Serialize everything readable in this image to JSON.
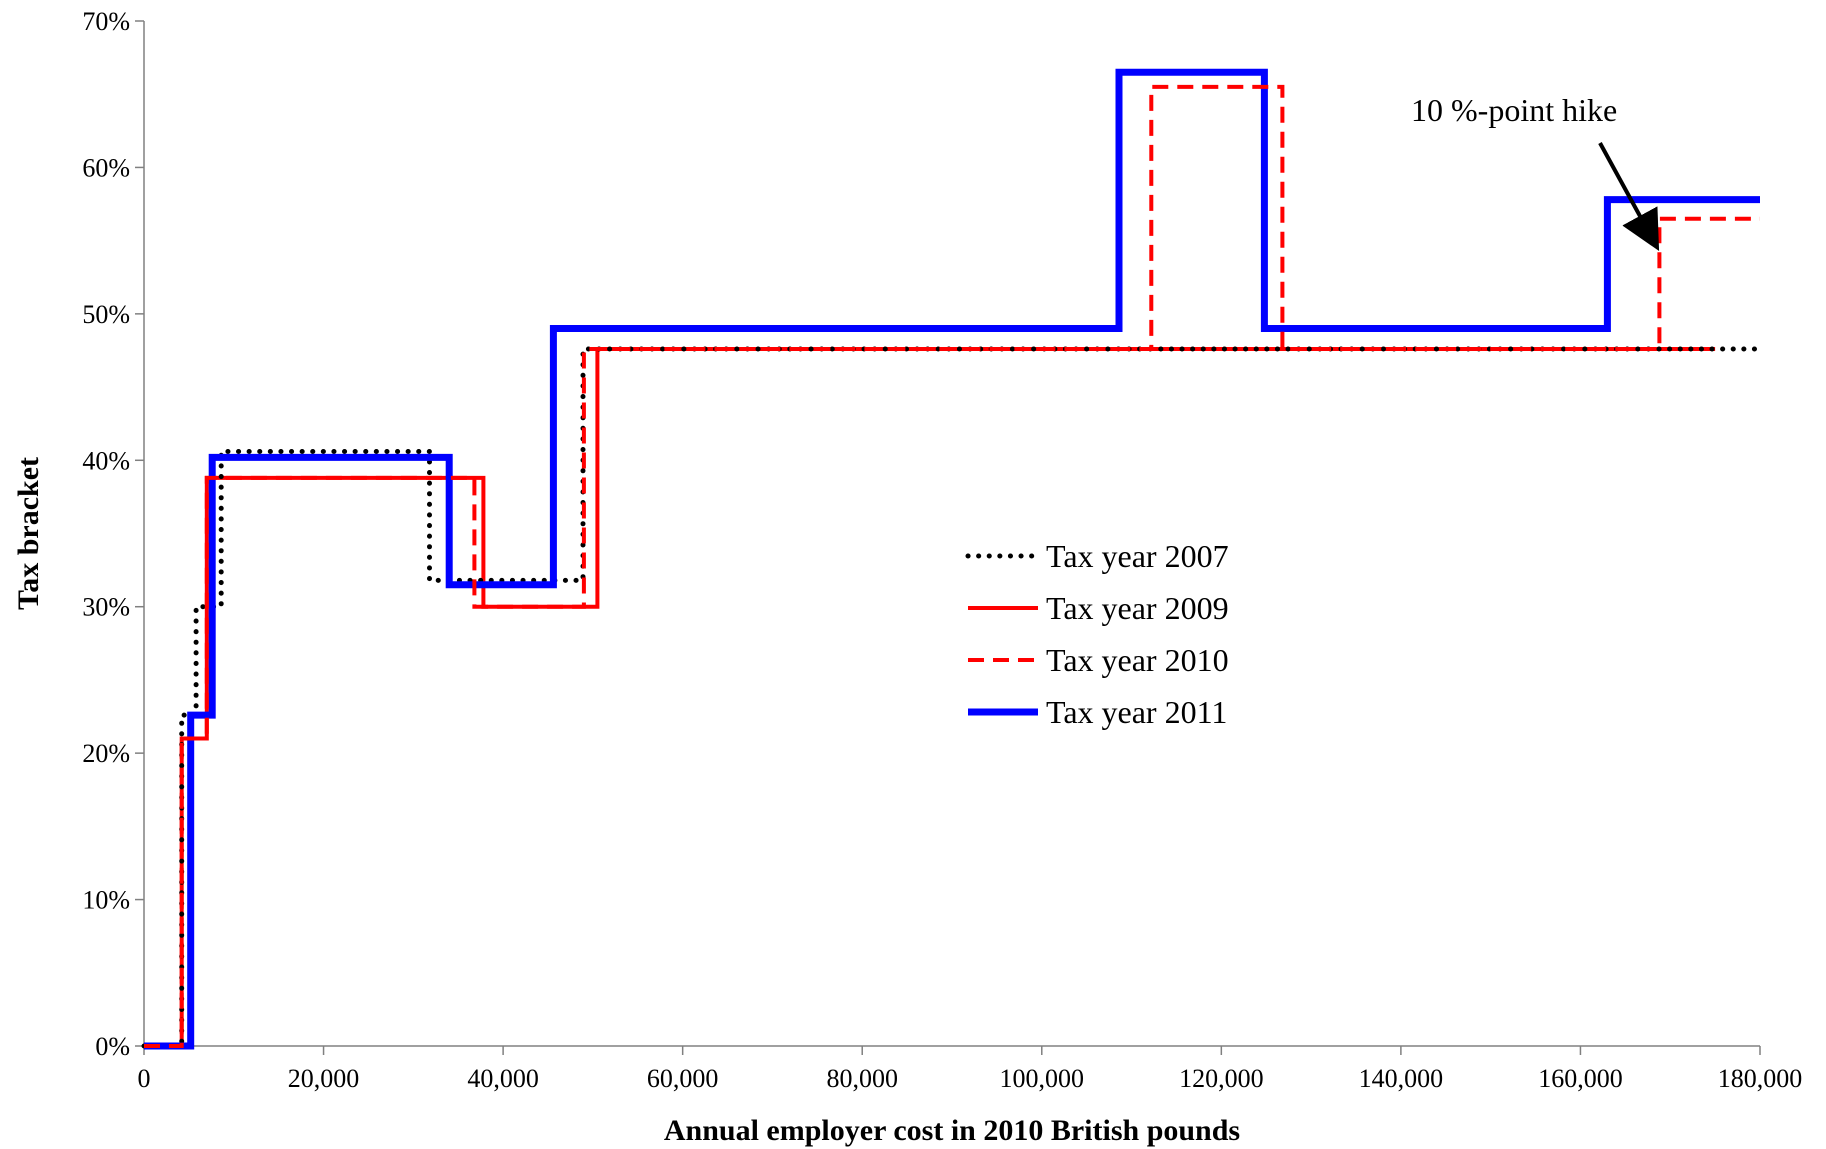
{
  "chart_data": {
    "type": "line",
    "line_style": "step",
    "title": "",
    "xlabel": "Annual employer cost in 2010 British pounds",
    "ylabel": "Tax bracket",
    "xlim": [
      0,
      180000
    ],
    "ylim": [
      0,
      70
    ],
    "x_ticks": [
      {
        "value": 0,
        "label": "0"
      },
      {
        "value": 20000,
        "label": "20,000"
      },
      {
        "value": 40000,
        "label": "40,000"
      },
      {
        "value": 60000,
        "label": "60,000"
      },
      {
        "value": 80000,
        "label": "80,000"
      },
      {
        "value": 100000,
        "label": "100,000"
      },
      {
        "value": 120000,
        "label": "120,000"
      },
      {
        "value": 140000,
        "label": "140,000"
      },
      {
        "value": 160000,
        "label": "160,000"
      },
      {
        "value": 180000,
        "label": "180,000"
      }
    ],
    "y_ticks": [
      {
        "value": 0,
        "label": "0%"
      },
      {
        "value": 10,
        "label": "10%"
      },
      {
        "value": 20,
        "label": "20%"
      },
      {
        "value": 30,
        "label": "30%"
      },
      {
        "value": 40,
        "label": "40%"
      },
      {
        "value": 50,
        "label": "50%"
      },
      {
        "value": 60,
        "label": "60%"
      },
      {
        "value": 70,
        "label": "70%"
      }
    ],
    "grid": false,
    "legend_position": "center-right",
    "series": [
      {
        "name": "Tax year 2007",
        "color": "#000000",
        "dash": "dotted",
        "x": [
          0,
          4200,
          4200,
          5800,
          5800,
          8600,
          8600,
          31800,
          31800,
          48900,
          48900,
          180000
        ],
        "y": [
          0,
          0,
          22.6,
          22.6,
          30.0,
          30.0,
          40.6,
          40.6,
          31.8,
          31.8,
          47.6,
          47.6
        ]
      },
      {
        "name": "Tax year 2009",
        "color": "#ff0000",
        "dash": "solid",
        "x": [
          0,
          4200,
          4200,
          7000,
          7000,
          37800,
          37800,
          50500,
          50500,
          175000
        ],
        "y": [
          0,
          0,
          21.0,
          21.0,
          38.8,
          38.8,
          30.0,
          30.0,
          47.6,
          47.6
        ]
      },
      {
        "name": "Tax year 2010",
        "color": "#ff0000",
        "dash": "dashed",
        "x": [
          0,
          4200,
          4200,
          7000,
          7000,
          36800,
          36800,
          49000,
          49000,
          112200,
          112200,
          126800,
          126800,
          168800,
          168800,
          180000
        ],
        "y": [
          0,
          0,
          21.0,
          21.0,
          38.8,
          38.8,
          30.0,
          30.0,
          47.6,
          47.6,
          65.5,
          65.5,
          47.6,
          47.6,
          56.5,
          56.5
        ]
      },
      {
        "name": "Tax year 2011",
        "color": "#0000ff",
        "dash": "solid",
        "x": [
          0,
          5200,
          5200,
          7600,
          7600,
          34000,
          34000,
          45600,
          45600,
          108600,
          108600,
          124800,
          124800,
          163000,
          163000,
          180000
        ],
        "y": [
          0,
          0,
          22.6,
          22.6,
          40.2,
          40.2,
          31.5,
          31.5,
          49.0,
          49.0,
          66.5,
          66.5,
          49.0,
          49.0,
          57.8,
          57.8
        ]
      }
    ],
    "annotations": [
      {
        "text": "10 %-point hike",
        "arrow_to": {
          "x": 169000,
          "y": 54.5
        }
      }
    ]
  }
}
